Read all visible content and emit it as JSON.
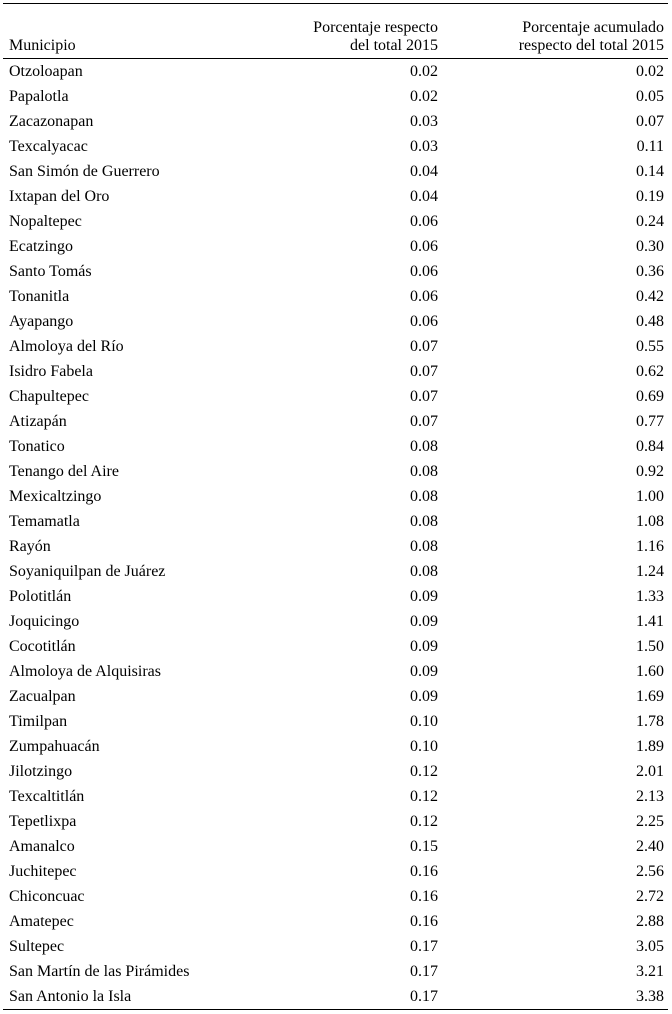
{
  "table": {
    "header": [
      [
        "Municipio"
      ],
      [
        "Porcentaje respecto",
        "del total 2015"
      ],
      [
        "Porcentaje acumulado",
        "respecto del total 2015"
      ]
    ],
    "rows": [
      [
        "Otzoloapan",
        "0.02",
        "0.02"
      ],
      [
        "Papalotla",
        "0.02",
        "0.05"
      ],
      [
        "Zacazonapan",
        "0.03",
        "0.07"
      ],
      [
        "Texcalyacac",
        "0.03",
        "0.11"
      ],
      [
        "San Simón de Guerrero",
        "0.04",
        "0.14"
      ],
      [
        "Ixtapan del Oro",
        "0.04",
        "0.19"
      ],
      [
        "Nopaltepec",
        "0.06",
        "0.24"
      ],
      [
        "Ecatzingo",
        "0.06",
        "0.30"
      ],
      [
        "Santo Tomás",
        "0.06",
        "0.36"
      ],
      [
        "Tonanitla",
        "0.06",
        "0.42"
      ],
      [
        "Ayapango",
        "0.06",
        "0.48"
      ],
      [
        "Almoloya del Río",
        "0.07",
        "0.55"
      ],
      [
        "Isidro Fabela",
        "0.07",
        "0.62"
      ],
      [
        "Chapultepec",
        "0.07",
        "0.69"
      ],
      [
        "Atizapán",
        "0.07",
        "0.77"
      ],
      [
        "Tonatico",
        "0.08",
        "0.84"
      ],
      [
        "Tenango del Aire",
        "0.08",
        "0.92"
      ],
      [
        "Mexicaltzingo",
        "0.08",
        "1.00"
      ],
      [
        "Temamatla",
        "0.08",
        "1.08"
      ],
      [
        "Rayón",
        "0.08",
        "1.16"
      ],
      [
        "Soyaniquilpan de Juárez",
        "0.08",
        "1.24"
      ],
      [
        "Polotitlán",
        "0.09",
        "1.33"
      ],
      [
        "Joquicingo",
        "0.09",
        "1.41"
      ],
      [
        "Cocotitlán",
        "0.09",
        "1.50"
      ],
      [
        "Almoloya de Alquisiras",
        "0.09",
        "1.60"
      ],
      [
        "Zacualpan",
        "0.09",
        "1.69"
      ],
      [
        "Timilpan",
        "0.10",
        "1.78"
      ],
      [
        "Zumpahuacán",
        "0.10",
        "1.89"
      ],
      [
        "Jilotzingo",
        "0.12",
        "2.01"
      ],
      [
        "Texcaltitlán",
        "0.12",
        "2.13"
      ],
      [
        "Tepetlixpa",
        "0.12",
        "2.25"
      ],
      [
        "Amanalco",
        "0.15",
        "2.40"
      ],
      [
        "Juchitepec",
        "0.16",
        "2.56"
      ],
      [
        "Chiconcuac",
        "0.16",
        "2.72"
      ],
      [
        "Amatepec",
        "0.16",
        "2.88"
      ],
      [
        "Sultepec",
        "0.17",
        "3.05"
      ],
      [
        "San Martín de las Pirámides",
        "0.17",
        "3.21"
      ],
      [
        "San Antonio la Isla",
        "0.17",
        "3.38"
      ]
    ]
  }
}
